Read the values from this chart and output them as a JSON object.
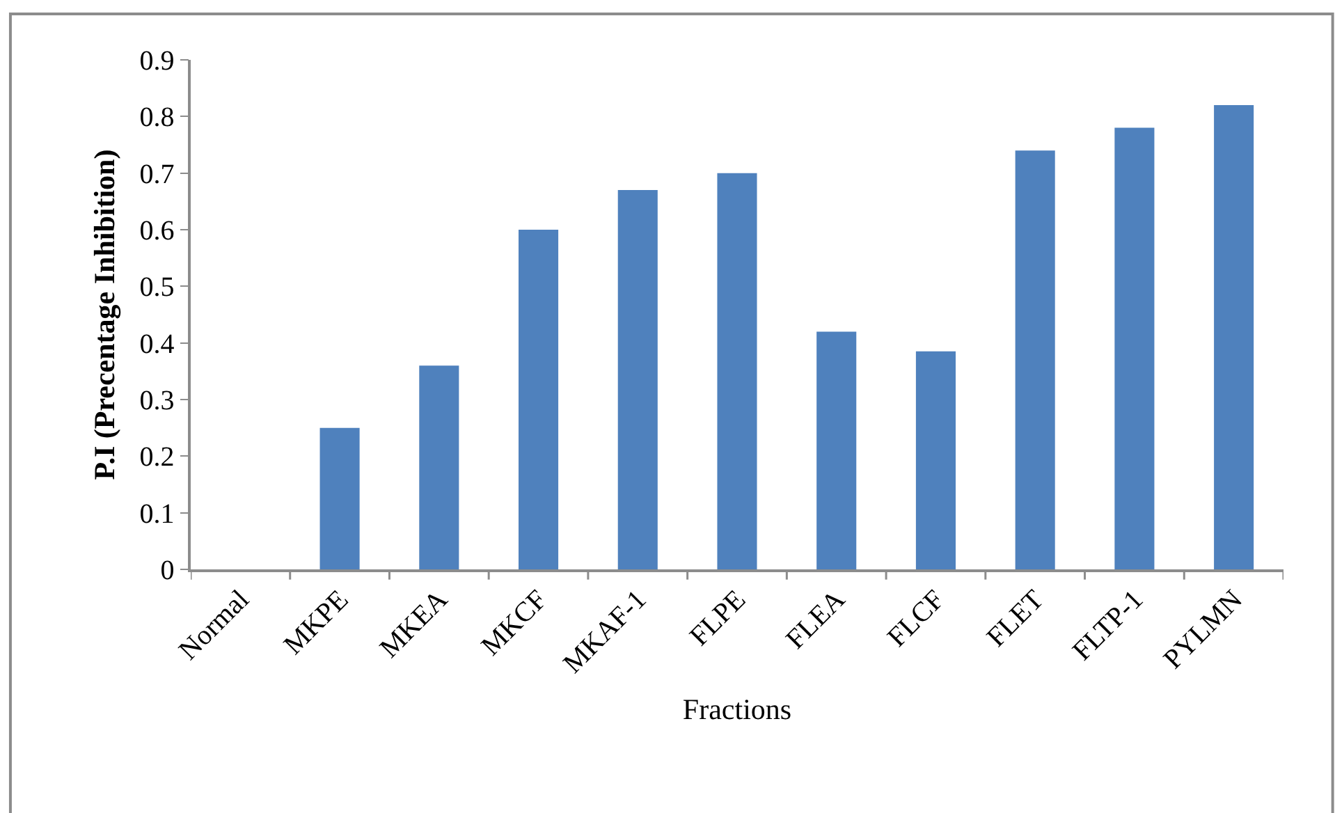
{
  "chart_data": {
    "type": "bar",
    "xlabel": "Fractions",
    "ylabel": "P.I (Precentage Inhibition)",
    "categories": [
      "Normal",
      "MKPE",
      "MKEA",
      "MKCF",
      "MKAF-1",
      "FLPE",
      "FLEA",
      "FLCF",
      "FLET",
      "FLTP-1",
      "PYLMN"
    ],
    "values": [
      0,
      0.25,
      0.36,
      0.6,
      0.67,
      0.7,
      0.42,
      0.385,
      0.74,
      0.78,
      0.82
    ],
    "color": "#4f81bd",
    "ylim": [
      0,
      0.9
    ],
    "yticks": [
      0,
      0.1,
      0.2,
      0.3,
      0.4,
      0.5,
      0.6,
      0.7,
      0.8,
      0.9
    ]
  }
}
